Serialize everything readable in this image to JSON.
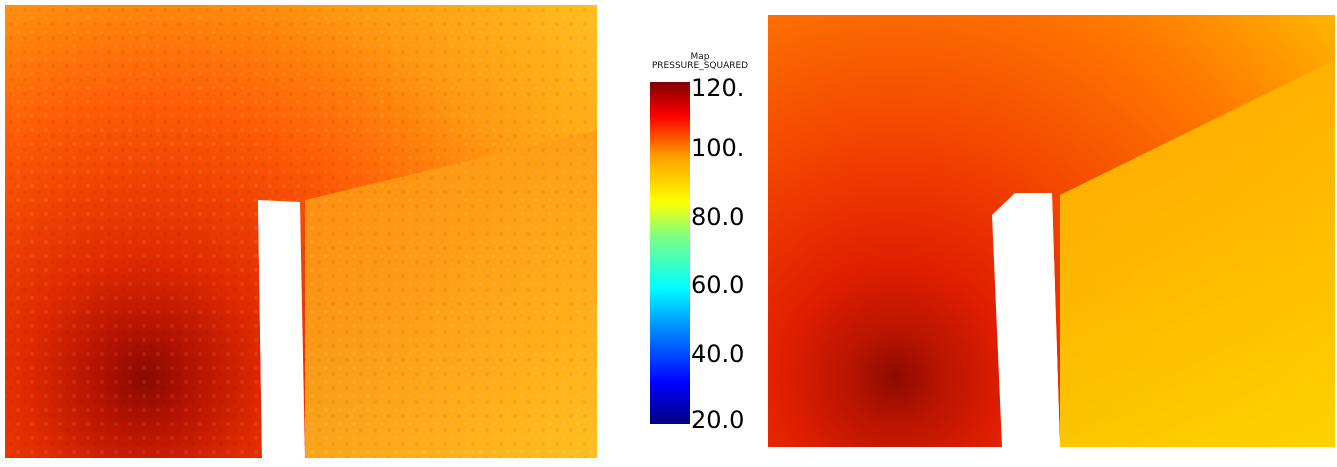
{
  "legend": {
    "title_line1": "Map",
    "title_line2": "PRESSURE_SQUARED",
    "ticks": [
      "120.",
      "100.",
      "80.0",
      "60.0",
      "40.0",
      "20.0"
    ]
  },
  "colors": {
    "colormap": [
      "#000080",
      "#0000ff",
      "#00a0ff",
      "#00ffff",
      "#80ff80",
      "#ffff00",
      "#ffa000",
      "#ff0000",
      "#800000"
    ],
    "background": "#ffffff"
  },
  "figures": {
    "left": "pressure-field-with-noise",
    "right": "pressure-field-smooth"
  }
}
